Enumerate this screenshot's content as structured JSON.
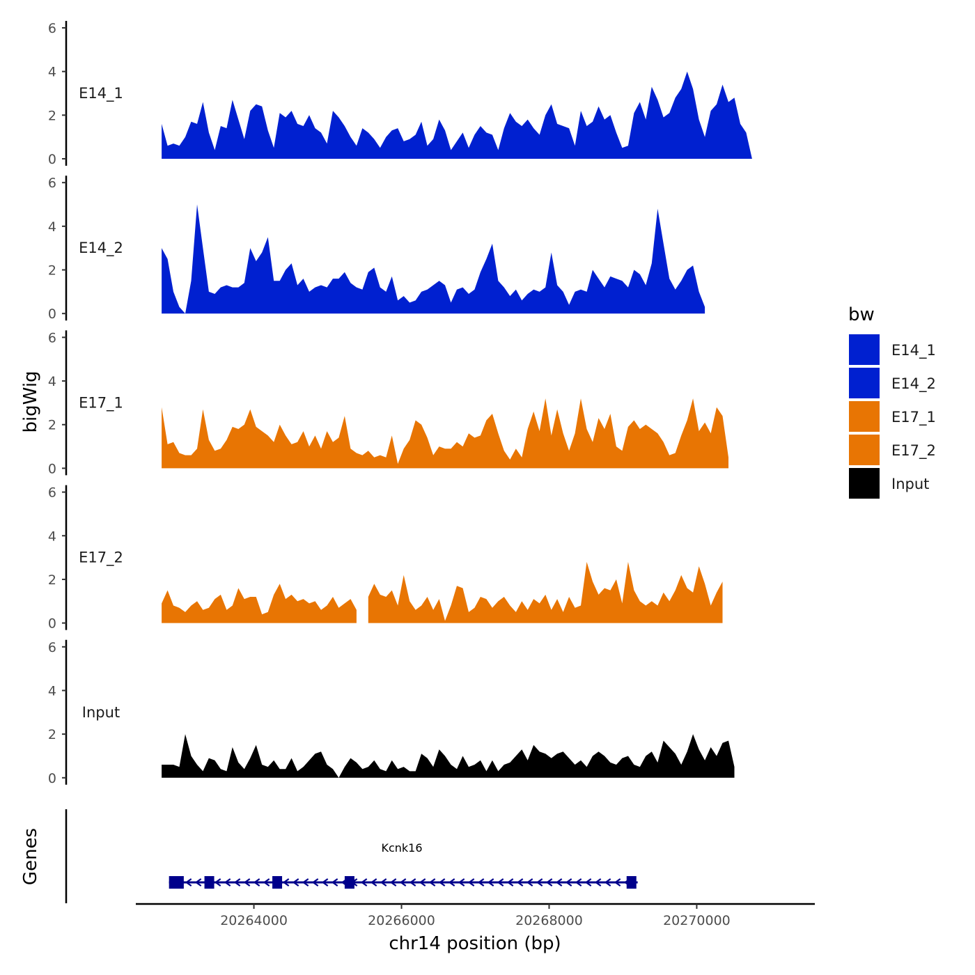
{
  "chart_data": {
    "type": "area",
    "ylabel": "bigWig",
    "xlabel": "chr14 position (bp)",
    "xlim": [
      20262400,
      20271600
    ],
    "x_ticks": [
      20264000,
      20266000,
      20268000,
      20270000
    ],
    "x_tick_labels": [
      "20264000",
      "20266000",
      "20268000",
      "20270000"
    ],
    "ylim": [
      0,
      6
    ],
    "y_ticks": [
      0,
      2,
      4,
      6
    ],
    "y_tick_labels": [
      "0",
      "2",
      "4",
      "6"
    ],
    "x_start": 20262750,
    "x_step": 80,
    "tracks": [
      {
        "name": "E14_1",
        "color": "#0020D0",
        "values": [
          1.6,
          0.6,
          0.7,
          0.6,
          1.0,
          1.7,
          1.6,
          2.6,
          1.2,
          0.4,
          1.5,
          1.4,
          2.7,
          1.8,
          0.9,
          2.2,
          2.5,
          2.4,
          1.3,
          0.5,
          2.1,
          1.9,
          2.2,
          1.6,
          1.5,
          2.0,
          1.4,
          1.2,
          0.7,
          2.2,
          1.9,
          1.5,
          1.0,
          0.6,
          1.4,
          1.2,
          0.9,
          0.5,
          1.0,
          1.3,
          1.4,
          0.8,
          0.9,
          1.1,
          1.7,
          0.6,
          0.9,
          1.8,
          1.3,
          0.4,
          0.8,
          1.2,
          0.5,
          1.1,
          1.5,
          1.2,
          1.1,
          0.4,
          1.4,
          2.1,
          1.7,
          1.5,
          1.8,
          1.4,
          1.1,
          2.0,
          2.5,
          1.6,
          1.5,
          1.4,
          0.6,
          2.2,
          1.5,
          1.7,
          2.4,
          1.8,
          2.0,
          1.2,
          0.5,
          0.6,
          2.1,
          2.6,
          1.8,
          3.3,
          2.7,
          1.9,
          2.1,
          2.8,
          3.2,
          4.0,
          3.2,
          1.8,
          1.0,
          2.2,
          2.5,
          3.4,
          2.6,
          2.8,
          1.6,
          1.2,
          0.0
        ]
      },
      {
        "name": "E14_2",
        "color": "#0020D0",
        "values": [
          3.0,
          2.5,
          1.0,
          0.3,
          0.0,
          1.5,
          5.0,
          3.0,
          1.0,
          0.9,
          1.2,
          1.3,
          1.2,
          1.2,
          1.4,
          3.0,
          2.4,
          2.8,
          3.5,
          1.5,
          1.5,
          2.0,
          2.3,
          1.3,
          1.6,
          1.0,
          1.2,
          1.3,
          1.2,
          1.6,
          1.6,
          1.9,
          1.4,
          1.2,
          1.1,
          1.9,
          2.1,
          1.2,
          1.0,
          1.7,
          0.6,
          0.8,
          0.5,
          0.6,
          1.0,
          1.1,
          1.3,
          1.5,
          1.3,
          0.5,
          1.1,
          1.2,
          0.9,
          1.1,
          1.9,
          2.5,
          3.2,
          1.5,
          1.2,
          0.8,
          1.1,
          0.6,
          0.9,
          1.1,
          1.0,
          1.2,
          2.8,
          1.3,
          1.0,
          0.4,
          1.0,
          1.1,
          1.0,
          2.0,
          1.6,
          1.2,
          1.7,
          1.6,
          1.5,
          1.2,
          2.0,
          1.8,
          1.3,
          2.3,
          4.8,
          3.2,
          1.6,
          1.1,
          1.5,
          2.0,
          2.2,
          1.0,
          0.3
        ]
      },
      {
        "name": "E17_1",
        "color": "#E87503",
        "values": [
          2.8,
          1.1,
          1.2,
          0.7,
          0.6,
          0.6,
          0.9,
          2.7,
          1.3,
          0.8,
          0.9,
          1.3,
          1.9,
          1.8,
          2.0,
          2.7,
          1.9,
          1.7,
          1.5,
          1.2,
          2.0,
          1.5,
          1.1,
          1.2,
          1.7,
          1.0,
          1.5,
          0.9,
          1.7,
          1.2,
          1.4,
          2.4,
          0.9,
          0.7,
          0.6,
          0.8,
          0.5,
          0.6,
          0.5,
          1.5,
          0.2,
          0.9,
          1.3,
          2.2,
          2.0,
          1.4,
          0.6,
          1.0,
          0.9,
          0.9,
          1.2,
          1.0,
          1.6,
          1.4,
          1.5,
          2.2,
          2.5,
          1.6,
          0.8,
          0.4,
          0.9,
          0.5,
          1.8,
          2.6,
          1.7,
          3.2,
          1.5,
          2.7,
          1.6,
          0.8,
          1.6,
          3.2,
          1.8,
          1.2,
          2.3,
          1.8,
          2.5,
          1.0,
          0.8,
          1.9,
          2.2,
          1.8,
          2.0,
          1.8,
          1.6,
          1.2,
          0.6,
          0.7,
          1.5,
          2.2,
          3.2,
          1.7,
          2.1,
          1.6,
          2.8,
          2.4,
          0.5
        ]
      },
      {
        "name": "E17_2",
        "color": "#E87503",
        "values": [
          0.9,
          1.5,
          0.8,
          0.7,
          0.5,
          0.8,
          1.0,
          0.6,
          0.7,
          1.1,
          1.3,
          0.6,
          0.8,
          1.6,
          1.1,
          1.2,
          1.2,
          0.4,
          0.5,
          1.3,
          1.8,
          1.1,
          1.3,
          1.0,
          1.1,
          0.9,
          1.0,
          0.6,
          0.8,
          1.2,
          0.7,
          0.9,
          1.1,
          0.6,
          null,
          1.2,
          1.8,
          1.3,
          1.2,
          1.5,
          0.8,
          2.2,
          1.0,
          0.6,
          0.8,
          1.2,
          0.6,
          1.1,
          0.1,
          0.8,
          1.7,
          1.6,
          0.5,
          0.7,
          1.2,
          1.1,
          0.7,
          1.0,
          1.2,
          0.8,
          0.5,
          1.0,
          0.6,
          1.1,
          0.9,
          1.3,
          0.6,
          1.1,
          0.5,
          1.2,
          0.7,
          0.8,
          2.8,
          1.9,
          1.3,
          1.6,
          1.5,
          2.0,
          0.9,
          2.8,
          1.5,
          1.0,
          0.8,
          1.0,
          0.8,
          1.4,
          1.0,
          1.5,
          2.2,
          1.6,
          1.4,
          2.6,
          1.8,
          0.8,
          1.4,
          1.9
        ]
      },
      {
        "name": "Input",
        "color": "#000000",
        "values": [
          0.6,
          0.6,
          0.6,
          0.5,
          2.0,
          1.0,
          0.6,
          0.3,
          0.9,
          0.8,
          0.4,
          0.3,
          1.4,
          0.7,
          0.4,
          0.9,
          1.5,
          0.6,
          0.5,
          0.8,
          0.4,
          0.4,
          0.9,
          0.3,
          0.5,
          0.8,
          1.1,
          1.2,
          0.6,
          0.4,
          0.0,
          0.5,
          0.9,
          0.7,
          0.4,
          0.5,
          0.8,
          0.4,
          0.3,
          0.8,
          0.4,
          0.5,
          0.3,
          0.3,
          1.1,
          0.9,
          0.5,
          1.3,
          1.0,
          0.6,
          0.4,
          1.0,
          0.5,
          0.6,
          0.8,
          0.3,
          0.8,
          0.3,
          0.6,
          0.7,
          1.0,
          1.3,
          0.8,
          1.5,
          1.2,
          1.1,
          0.9,
          1.1,
          1.2,
          0.9,
          0.6,
          0.8,
          0.5,
          1.0,
          1.2,
          1.0,
          0.7,
          0.6,
          0.9,
          1.0,
          0.6,
          0.5,
          1.0,
          1.2,
          0.7,
          1.7,
          1.4,
          1.1,
          0.6,
          1.2,
          2.0,
          1.3,
          0.8,
          1.4,
          1.0,
          1.6,
          1.7,
          0.5
        ]
      }
    ],
    "legend": {
      "title": "bw",
      "position": "right",
      "entries": [
        {
          "label": "E14_1",
          "color": "#0020D0"
        },
        {
          "label": "E14_2",
          "color": "#0020D0"
        },
        {
          "label": "E17_1",
          "color": "#E87503"
        },
        {
          "label": "E17_2",
          "color": "#E87503"
        },
        {
          "label": "Input",
          "color": "#000000"
        }
      ]
    },
    "genes_track": {
      "label": "Genes",
      "gene_name": "Kcnk16",
      "color": "#00008B",
      "strand": "-",
      "start": 20262850,
      "end": 20269200,
      "exons": [
        [
          20262850,
          20263050
        ],
        [
          20263330,
          20263450
        ],
        [
          20264250,
          20264380
        ],
        [
          20265230,
          20265330
        ],
        [
          20269050,
          20269180
        ]
      ]
    }
  }
}
